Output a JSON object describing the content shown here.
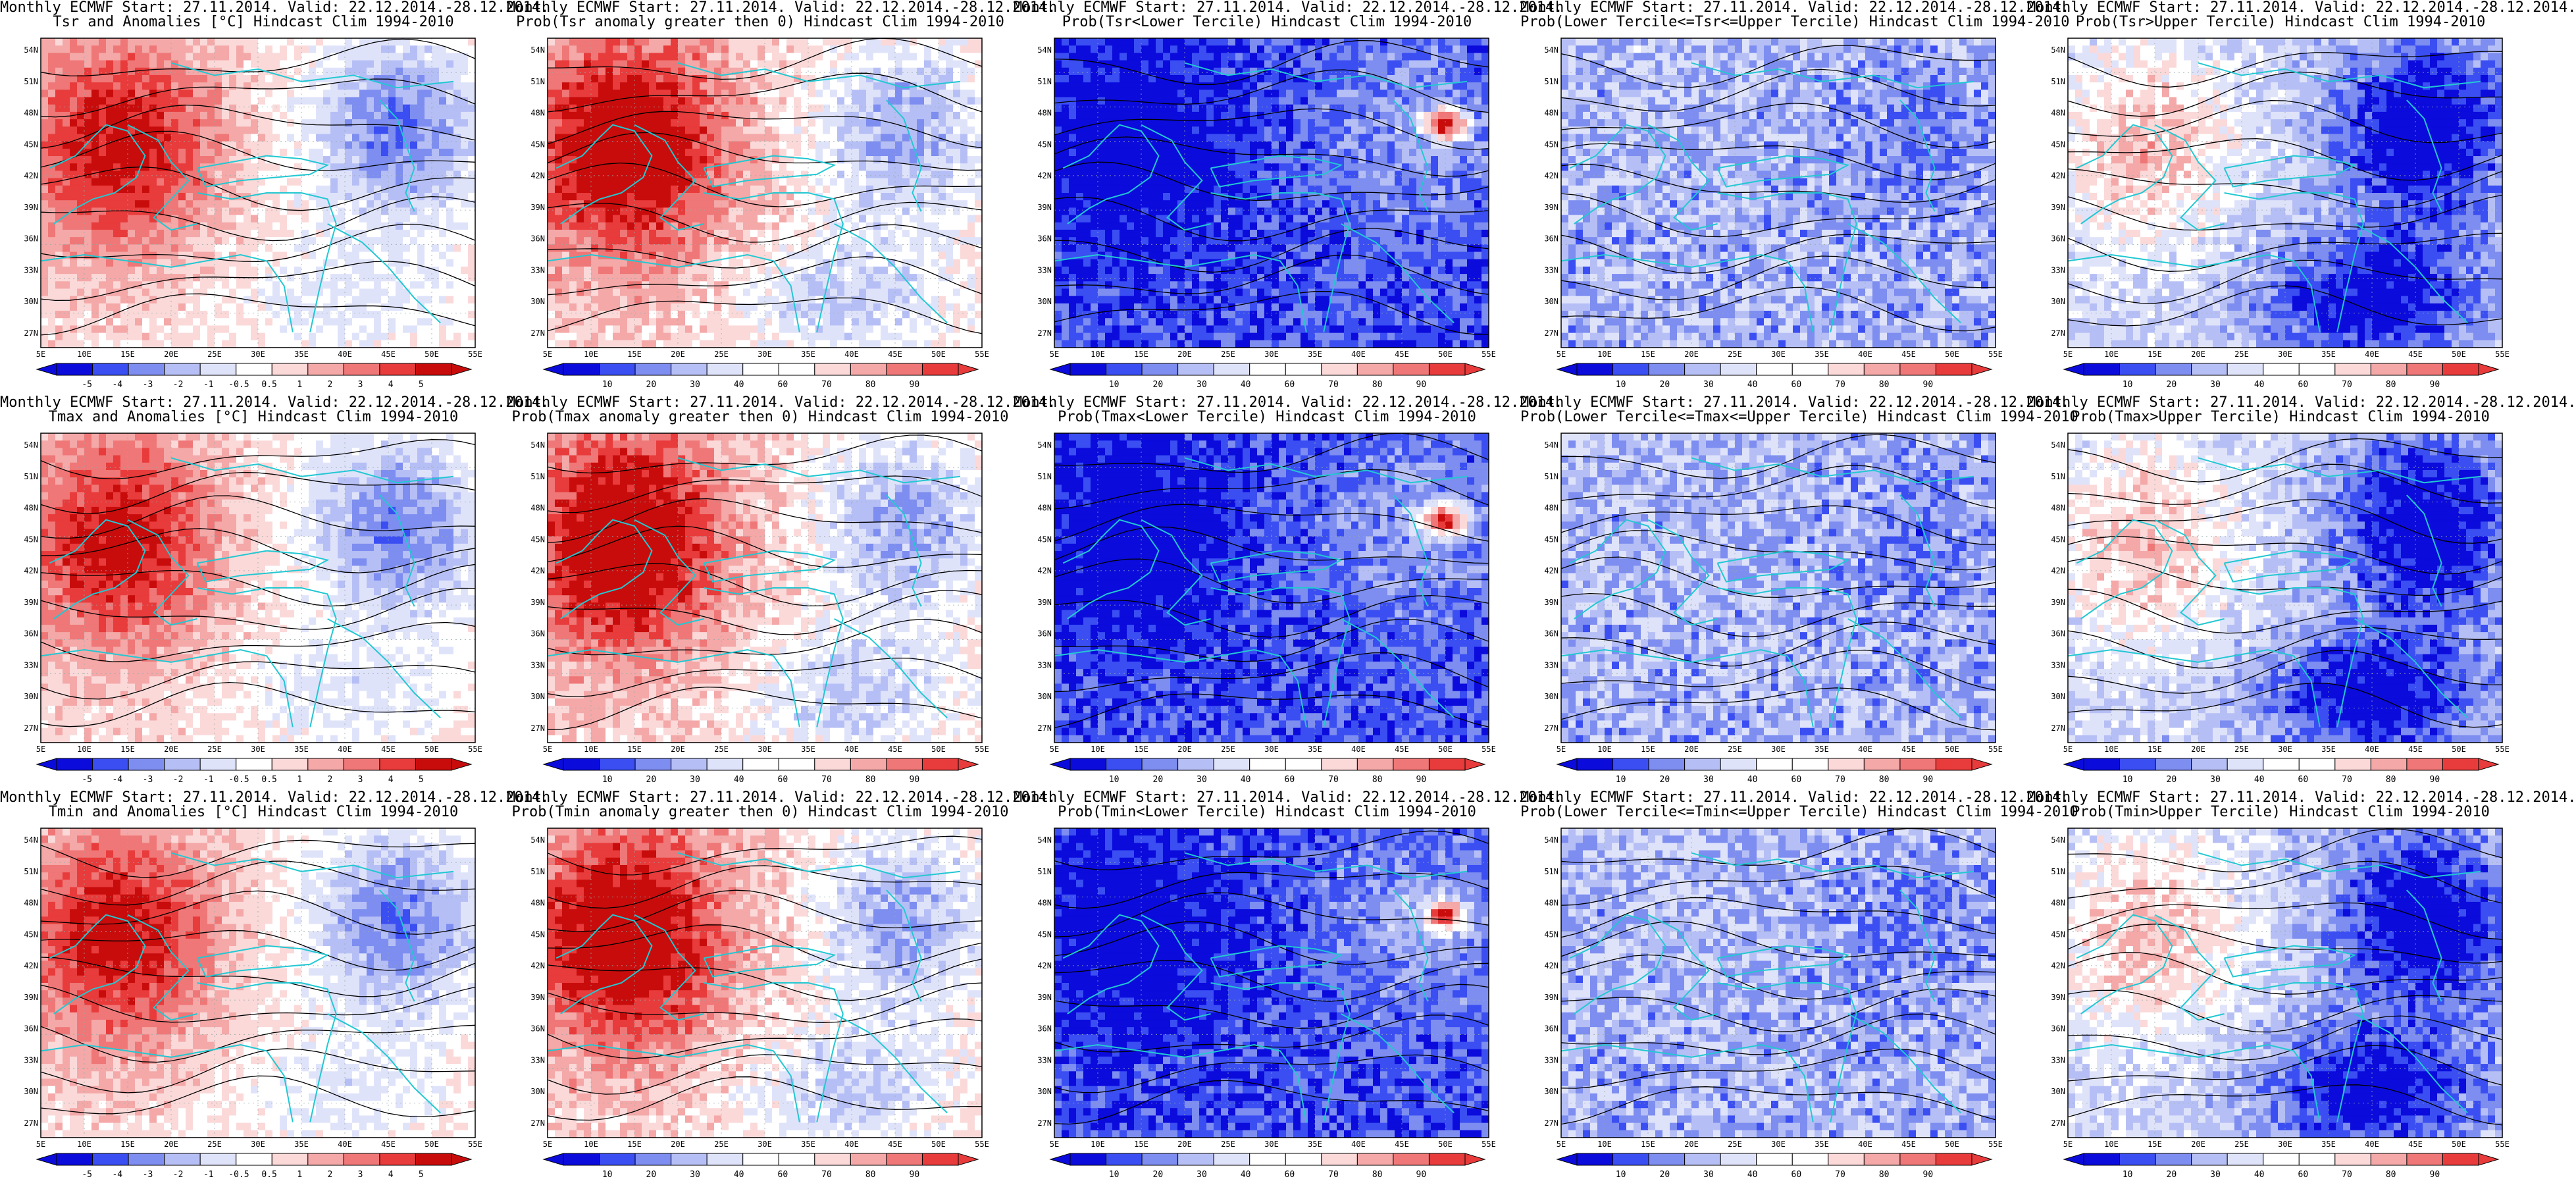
{
  "colors": {
    "blue_dark": "#0b0bdc",
    "blue": "#3a4ef2",
    "blue_mid": "#7d8df0",
    "blue_light": "#b6bff5",
    "blue_pale": "#dfe3fa",
    "white": "#ffffff",
    "red_pale": "#fbd9d9",
    "red_light": "#f4a8a8",
    "red_mid": "#ef7777",
    "red": "#e83b3b",
    "red_dark": "#c80c0c",
    "coast": "#22c8d2",
    "contour": "#000000"
  },
  "lat_labels": [
    "54N",
    "51N",
    "48N",
    "45N",
    "42N",
    "39N",
    "36N",
    "33N",
    "30N",
    "27N"
  ],
  "lon_labels": [
    "5E",
    "10E",
    "15E",
    "20E",
    "25E",
    "30E",
    "35E",
    "40E",
    "45E",
    "50E",
    "55E"
  ],
  "colorbars": {
    "anomaly": [
      "-5",
      "-4",
      "-3",
      "-2",
      "-1",
      "-0.5",
      "0.5",
      "1",
      "2",
      "3",
      "4",
      "5"
    ],
    "anomaly_tsr": [
      "-5",
      "-4",
      "-3",
      "-2",
      "-1",
      "-0.5",
      "0.5",
      "1",
      "2",
      "3",
      "4",
      "5"
    ],
    "probability": [
      "10",
      "20",
      "30",
      "40",
      "60",
      "70",
      "80",
      "90"
    ]
  },
  "panels": [
    {
      "line1": "Monthly ECMWF Start: 27.11.2014. Valid: 22.12.2014.-28.12.2014.",
      "line2": "Tsr and Anomalies [°C] Hindcast Clim 1994-2010",
      "bar": "anomaly",
      "scheme": "anom"
    },
    {
      "line1": "Monthly ECMWF Start: 27.11.2014. Valid: 22.12.2014.-28.12.2014.",
      "line2": "Prob(Tsr anomaly greater then 0) Hindcast Clim 1994-2010",
      "bar": "probability",
      "scheme": "pos"
    },
    {
      "line1": "Monthly ECMWF Start: 27.11.2014. Valid: 22.12.2014.-28.12.2014.",
      "line2": "Prob(Tsr<Lower Tercile) Hindcast Clim 1994-2010",
      "bar": "probability",
      "scheme": "lower"
    },
    {
      "line1": "Monthly ECMWF Start: 27.11.2014. Valid: 22.12.2014.-28.12.2014.",
      "line2": "Prob(Lower Tercile<=Tsr<=Upper Tercile) Hindcast Clim 1994-2010",
      "bar": "probability",
      "scheme": "middle"
    },
    {
      "line1": "Monthly ECMWF Start: 27.11.2014. Valid: 22.12.2014.-28.12.2014.",
      "line2": "Prob(Tsr>Upper Tercile) Hindcast Clim 1994-2010",
      "bar": "probability",
      "scheme": "upper"
    },
    {
      "line1": "Monthly ECMWF Start: 27.11.2014. Valid: 22.12.2014.-28.12.2014.",
      "line2": "Tmax and Anomalies [°C] Hindcast Clim 1994-2010",
      "bar": "anomaly",
      "scheme": "anom"
    },
    {
      "line1": "Monthly ECMWF Start: 27.11.2014. Valid: 22.12.2014.-28.12.2014.",
      "line2": "Prob(Tmax anomaly greater then 0) Hindcast Clim 1994-2010",
      "bar": "probability",
      "scheme": "pos"
    },
    {
      "line1": "Monthly ECMWF Start: 27.11.2014. Valid: 22.12.2014.-28.12.2014.",
      "line2": "Prob(Tmax<Lower Tercile) Hindcast Clim 1994-2010",
      "bar": "probability",
      "scheme": "lower"
    },
    {
      "line1": "Monthly ECMWF Start: 27.11.2014. Valid: 22.12.2014.-28.12.2014.",
      "line2": "Prob(Lower Tercile<=Tmax<=Upper Tercile) Hindcast Clim 1994-2010",
      "bar": "probability",
      "scheme": "middle"
    },
    {
      "line1": "Monthly ECMWF Start: 27.11.2014. Valid: 22.12.2014.-28.12.2014.",
      "line2": "Prob(Tmax>Upper Tercile) Hindcast Clim 1994-2010",
      "bar": "probability",
      "scheme": "upper"
    },
    {
      "line1": "Monthly ECMWF Start: 27.11.2014. Valid: 22.12.2014.-28.12.2014.",
      "line2": "Tmin and Anomalies [°C] Hindcast Clim 1994-2010",
      "bar": "anomaly",
      "scheme": "anom"
    },
    {
      "line1": "Monthly ECMWF Start: 27.11.2014. Valid: 22.12.2014.-28.12.2014.",
      "line2": "Prob(Tmin anomaly greater then 0) Hindcast Clim 1994-2010",
      "bar": "probability",
      "scheme": "pos"
    },
    {
      "line1": "Monthly ECMWF Start: 27.11.2014. Valid: 22.12.2014.-28.12.2014.",
      "line2": "Prob(Tmin<Lower Tercile) Hindcast Clim 1994-2010",
      "bar": "probability",
      "scheme": "lower"
    },
    {
      "line1": "Monthly ECMWF Start: 27.11.2014. Valid: 22.12.2014.-28.12.2014.",
      "line2": "Prob(Lower Tercile<=Tmin<=Upper Tercile) Hindcast Clim 1994-2010",
      "bar": "probability",
      "scheme": "middle"
    },
    {
      "line1": "Monthly ECMWF Start: 27.11.2014. Valid: 22.12.2014.-28.12.2014.",
      "line2": "Prob(Tmin>Upper Tercile) Hindcast Clim 1994-2010",
      "bar": "probability",
      "scheme": "upper"
    }
  ]
}
